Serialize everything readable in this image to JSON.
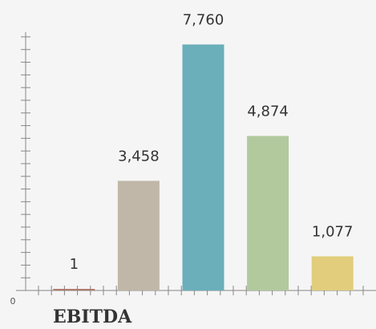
{
  "chart_data": {
    "type": "bar",
    "title": "EBITDA",
    "categories": [
      null,
      null,
      null,
      null,
      null
    ],
    "values": [
      1,
      3458,
      7760,
      4874,
      1077
    ],
    "value_labels": [
      "1",
      "3,458",
      "7,760",
      "4,874",
      "1,077"
    ],
    "colors": [
      "#b07a6c",
      "#c1b7a8",
      "#6aafba",
      "#b1c99d",
      "#e1cd7b"
    ],
    "ylim": [
      0,
      8150
    ],
    "yticks": [
      0
    ],
    "yminorticks": [
      400,
      800,
      1200,
      1600,
      2000,
      2400,
      2800,
      3200,
      3600,
      4000,
      4400,
      4800,
      5200,
      5600,
      6000,
      6400,
      6800,
      7200,
      7600,
      8000
    ]
  }
}
